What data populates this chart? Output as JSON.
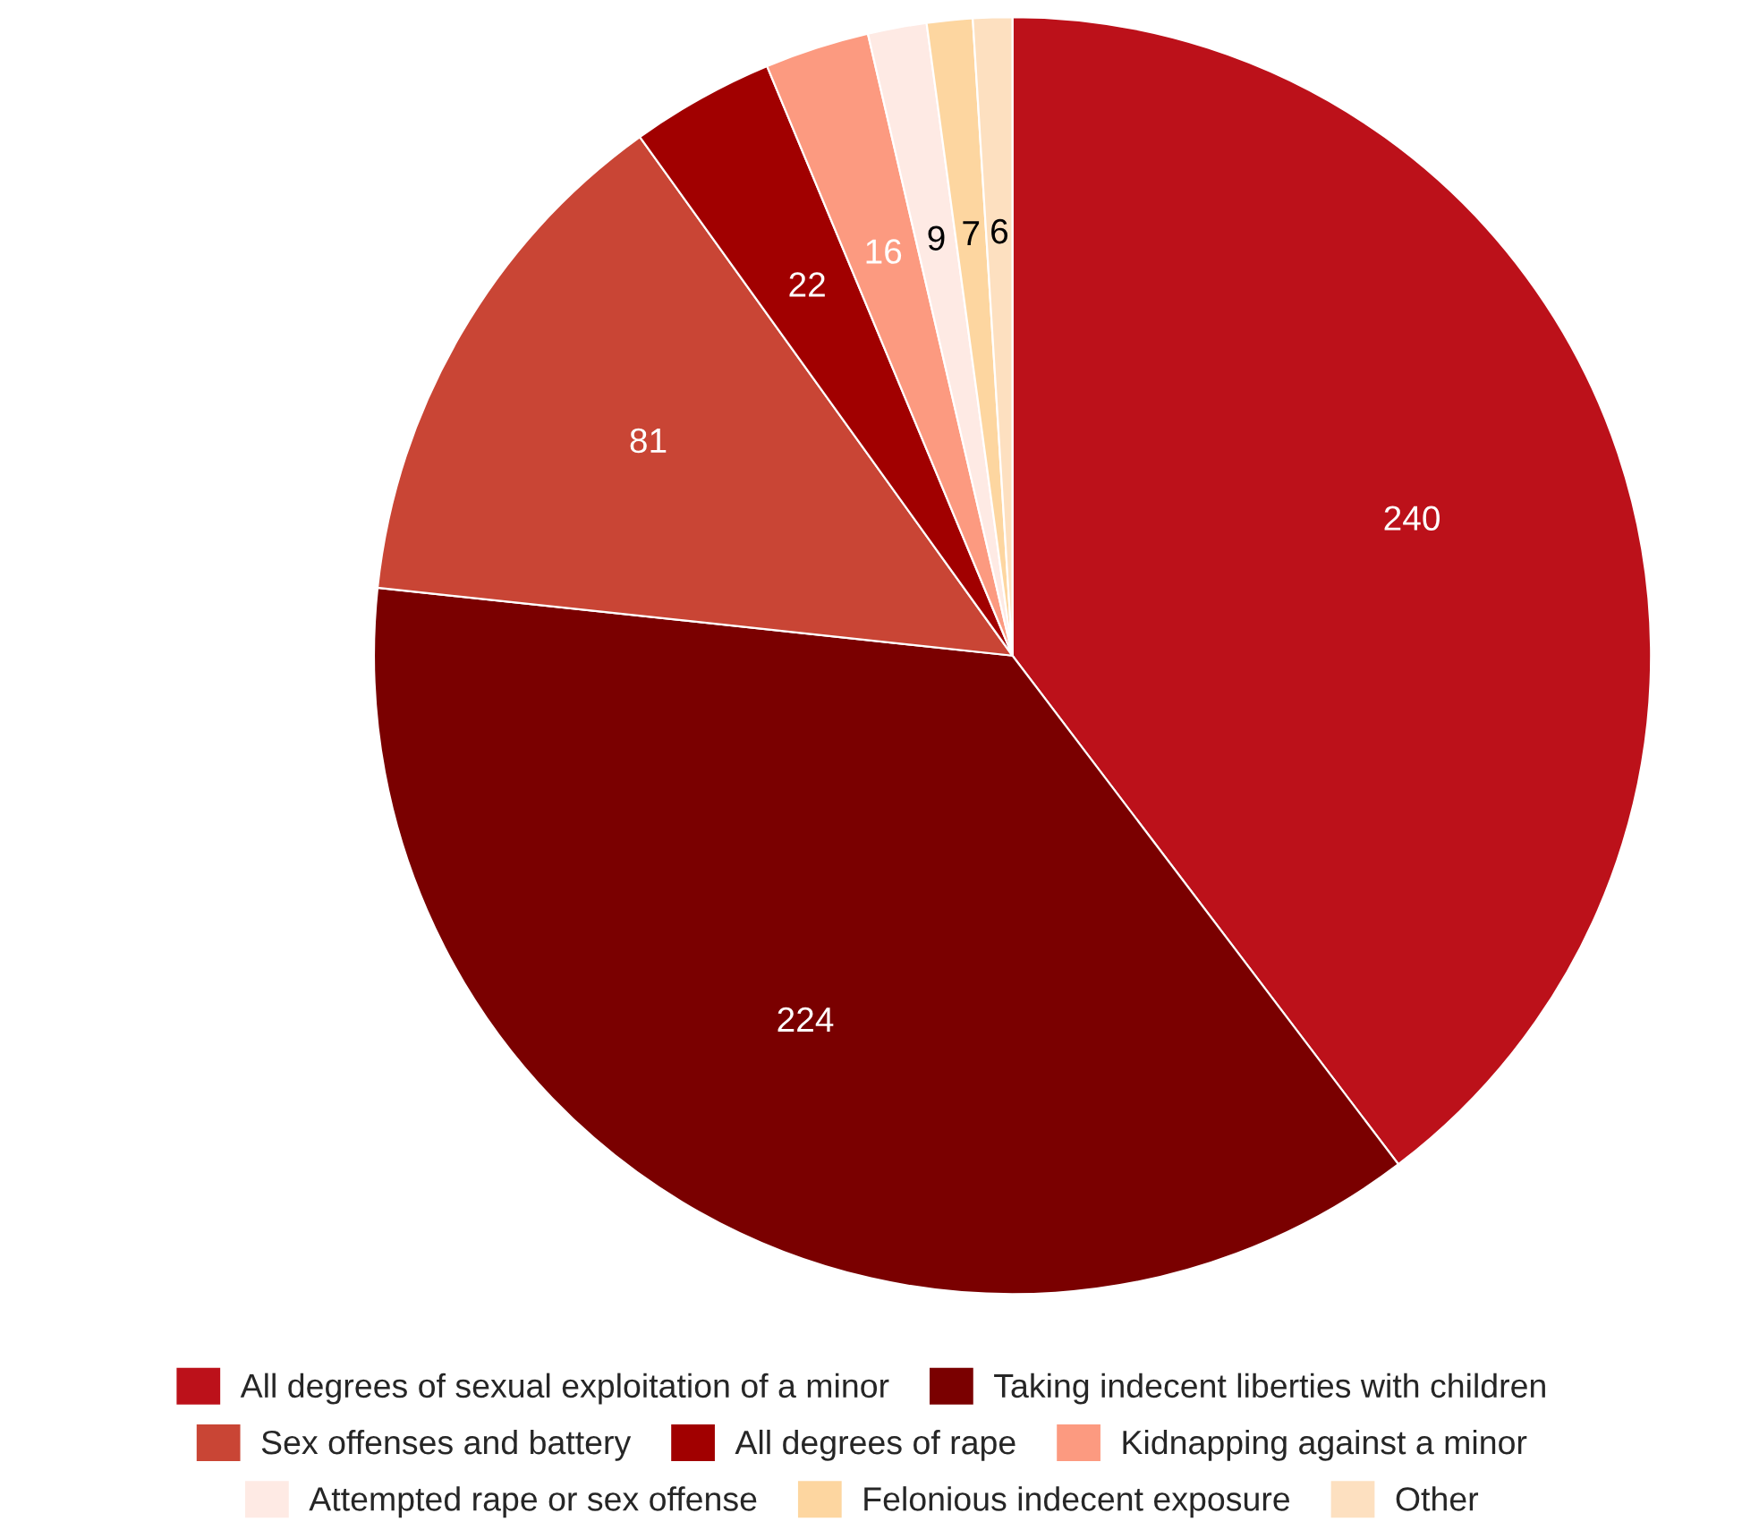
{
  "chart_data": {
    "type": "pie",
    "categories": [
      "All degrees of sexual exploitation of a minor",
      "Taking indecent liberties with children",
      "Sex offenses and battery",
      "All degrees of rape",
      "Kidnapping against a minor",
      "Attempted rape or sex offense",
      "Felonious indecent exposure",
      "Other"
    ],
    "values": [
      240,
      224,
      81,
      22,
      16,
      9,
      7,
      6
    ],
    "colors": [
      "#bc111a",
      "#7a0000",
      "#c94535",
      "#a10000",
      "#fc9a80",
      "#feeae4",
      "#fdd6a0",
      "#fde0c0"
    ],
    "data_labels": true,
    "legend": "bottom"
  }
}
